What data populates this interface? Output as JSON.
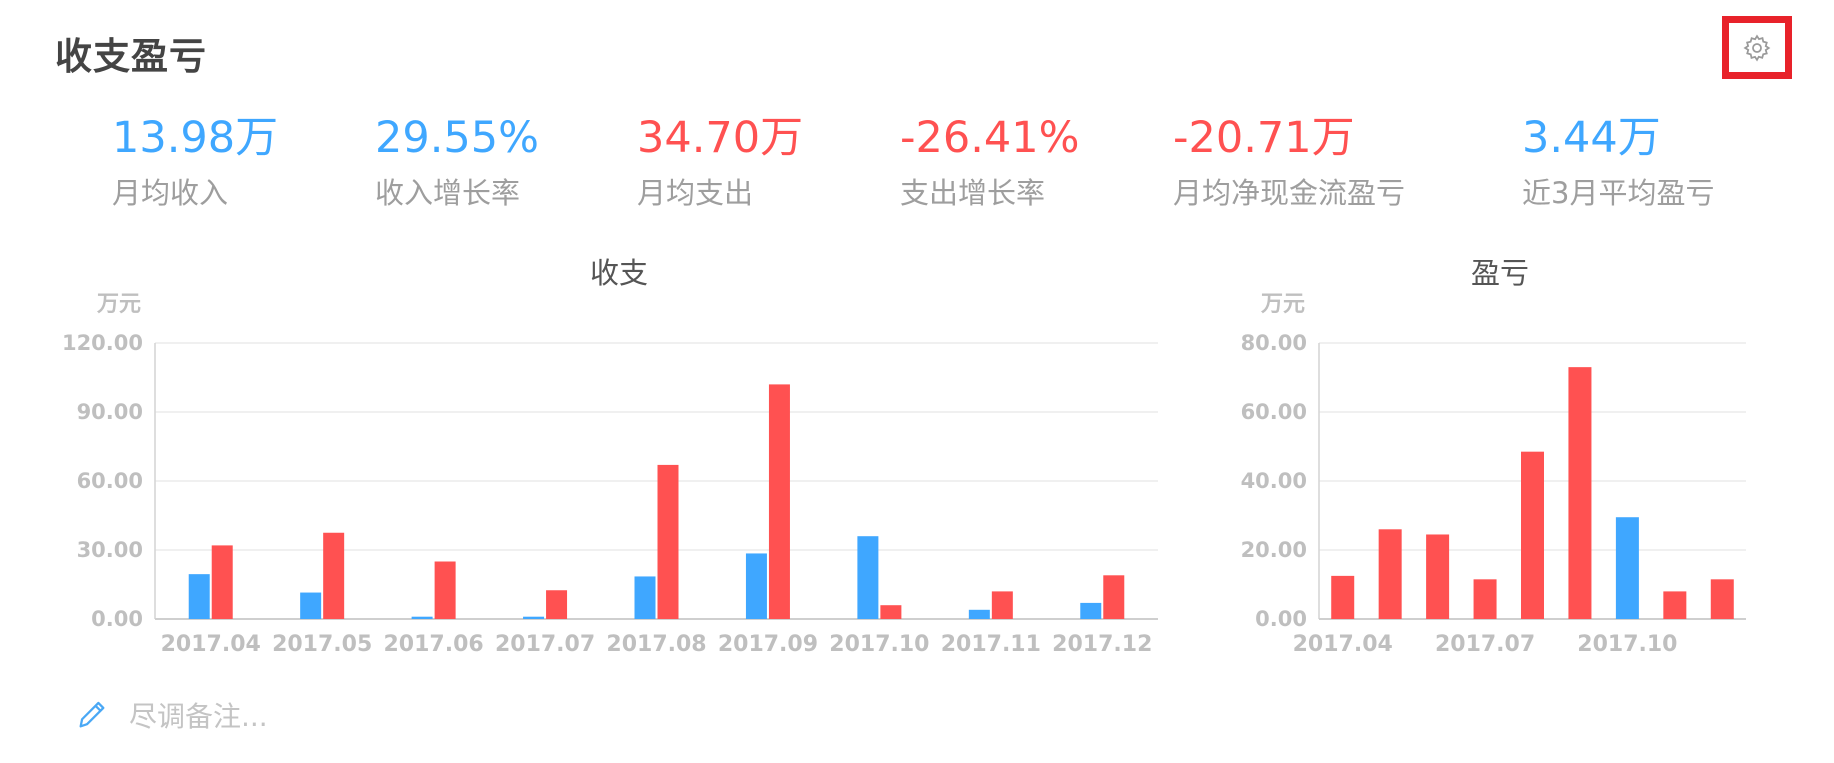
{
  "header": {
    "title": "收支盈亏",
    "settings_icon": "gear-icon"
  },
  "metrics": [
    {
      "value": "13.98万",
      "label": "月均收入",
      "color": "#3fa7ff"
    },
    {
      "value": "29.55%",
      "label": "收入增长率",
      "color": "#3fa7ff"
    },
    {
      "value": "34.70万",
      "label": "月均支出",
      "color": "#ff5151"
    },
    {
      "value": "-26.41%",
      "label": "支出增长率",
      "color": "#ff5151"
    },
    {
      "value": "-20.71万",
      "label": "月均净现金流盈亏",
      "color": "#ff5151"
    },
    {
      "value": "3.44万",
      "label": "近3月平均盈亏",
      "color": "#3fa7ff"
    }
  ],
  "colors": {
    "blue": "#3fa7ff",
    "red": "#ff5151"
  },
  "chart_data": [
    {
      "type": "bar",
      "title": "收支",
      "unit": "万元",
      "categories": [
        "2017.04",
        "2017.05",
        "2017.06",
        "2017.07",
        "2017.08",
        "2017.09",
        "2017.10",
        "2017.11",
        "2017.12"
      ],
      "series": [
        {
          "color": "#3fa7ff",
          "values": [
            19.5,
            11.5,
            1.0,
            1.0,
            18.5,
            28.5,
            36.0,
            4.0,
            7.0
          ]
        },
        {
          "color": "#ff5151",
          "values": [
            32.0,
            37.5,
            25.0,
            12.5,
            67.0,
            102.0,
            6.0,
            12.0,
            19.0
          ]
        }
      ],
      "yticks": [
        "0.00",
        "30.00",
        "60.00",
        "90.00",
        "120.00"
      ],
      "ylim": [
        0,
        120
      ],
      "grid": true
    },
    {
      "type": "bar",
      "title": "盈亏",
      "unit": "万元",
      "categories": [
        "2017.04",
        "2017.05",
        "2017.06",
        "2017.07",
        "2017.08",
        "2017.09",
        "2017.10",
        "2017.11",
        "2017.12"
      ],
      "xtick_labels": [
        "2017.04",
        "",
        "",
        "2017.07",
        "",
        "",
        "2017.10",
        "",
        ""
      ],
      "values": [
        12.5,
        26.0,
        24.5,
        11.5,
        48.5,
        73.0,
        29.5,
        8.0,
        11.5
      ],
      "bar_colors": [
        "#ff5151",
        "#ff5151",
        "#ff5151",
        "#ff5151",
        "#ff5151",
        "#ff5151",
        "#3fa7ff",
        "#ff5151",
        "#ff5151"
      ],
      "yticks": [
        "0.00",
        "20.00",
        "40.00",
        "60.00",
        "80.00"
      ],
      "ylim": [
        0,
        80
      ],
      "grid": true
    }
  ],
  "note": {
    "placeholder": "尽调备注...",
    "icon": "pencil-icon"
  }
}
